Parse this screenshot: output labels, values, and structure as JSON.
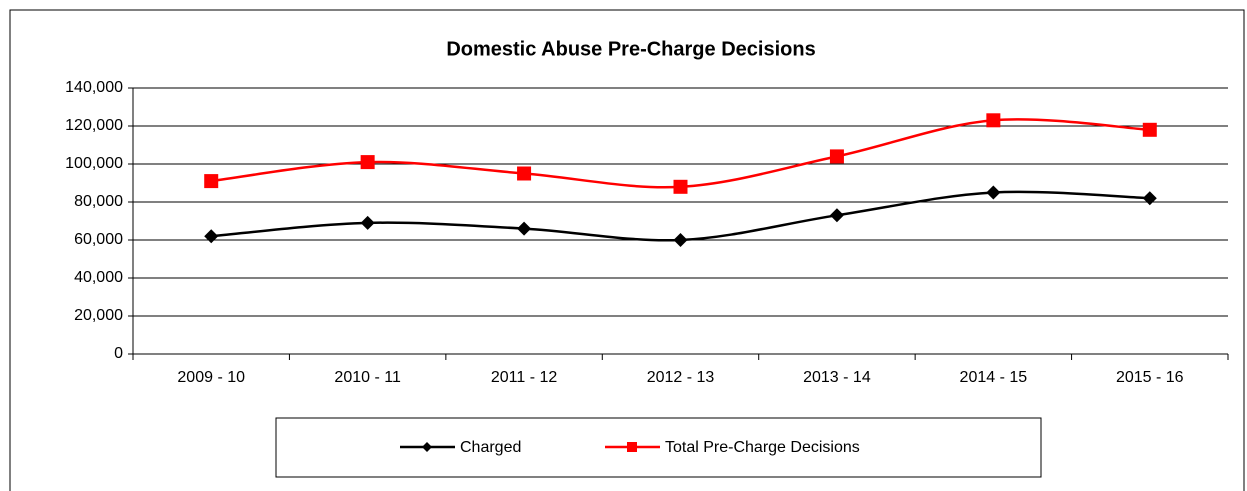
{
  "chart_data": {
    "type": "line",
    "title": "Domestic Abuse Pre-Charge Decisions",
    "categories": [
      "2009 - 10",
      "2010 - 11",
      "2011 - 12",
      "2012 - 13",
      "2013 - 14",
      "2014 - 15",
      "2015 - 16"
    ],
    "series": [
      {
        "name": "Charged",
        "color": "#000000",
        "marker": "diamond",
        "values": [
          62000,
          69000,
          66000,
          60000,
          73000,
          85000,
          82000
        ]
      },
      {
        "name": "Total Pre-Charge Decisions",
        "color": "#ff0000",
        "marker": "square",
        "values": [
          91000,
          101000,
          95000,
          88000,
          104000,
          123000,
          118000
        ]
      }
    ],
    "ylim": [
      0,
      140000
    ],
    "yticks": [
      0,
      {
        "value": 20000,
        "label": "20,000"
      },
      {
        "value": 40000,
        "label": "40,000"
      },
      {
        "value": 60000,
        "label": "60,000"
      },
      {
        "value": 80000,
        "label": "80,000"
      },
      {
        "value": 100000,
        "label": "100,000"
      },
      {
        "value": 120000,
        "label": "120,000"
      },
      {
        "value": 140000,
        "label": "140,000"
      }
    ],
    "grid": true,
    "smooth": true,
    "legend": "bottom"
  }
}
